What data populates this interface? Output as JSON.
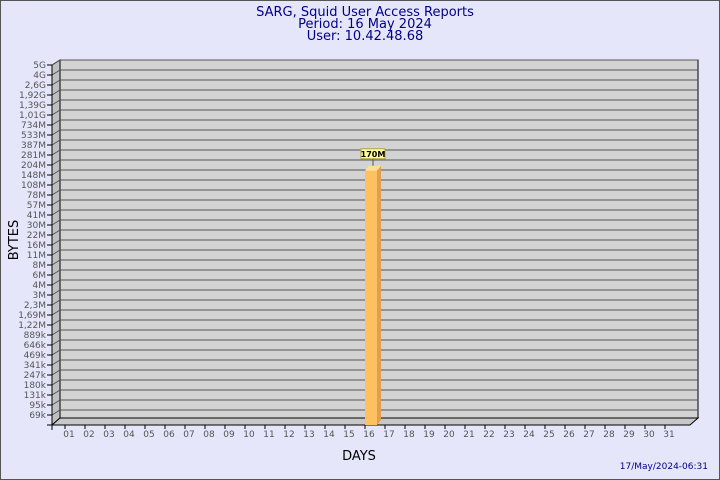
{
  "chart_data": {
    "type": "bar",
    "title": [
      "SARG, Squid User Access Reports",
      "Period: 16 May 2024",
      "User: 10.42.48.68"
    ],
    "xlabel": "DAYS",
    "ylabel": "BYTES",
    "y_scale": "log",
    "y_tick_labels": [
      "5G",
      "4G",
      "2,6G",
      "1,92G",
      "1,39G",
      "1,01G",
      "734M",
      "533M",
      "387M",
      "281M",
      "204M",
      "148M",
      "108M",
      "78M",
      "57M",
      "41M",
      "30M",
      "22M",
      "16M",
      "11M",
      "8M",
      "6M",
      "4M",
      "3M",
      "2,3M",
      "1,69M",
      "1,22M",
      "889k",
      "646k",
      "469k",
      "341k",
      "247k",
      "180k",
      "131k",
      "95k",
      "69k"
    ],
    "categories": [
      "01",
      "02",
      "03",
      "04",
      "05",
      "06",
      "07",
      "08",
      "09",
      "10",
      "11",
      "12",
      "13",
      "14",
      "15",
      "16",
      "17",
      "18",
      "19",
      "20",
      "21",
      "22",
      "23",
      "24",
      "25",
      "26",
      "27",
      "28",
      "29",
      "30",
      "31"
    ],
    "bars": [
      {
        "x": "16",
        "value": 170000000,
        "label": "170M"
      }
    ],
    "bar_color": "#ffc060",
    "grid": true,
    "ylim": [
      69000,
      5000000000
    ]
  },
  "footer": {
    "timestamp": "17/May/2024-06:31"
  }
}
